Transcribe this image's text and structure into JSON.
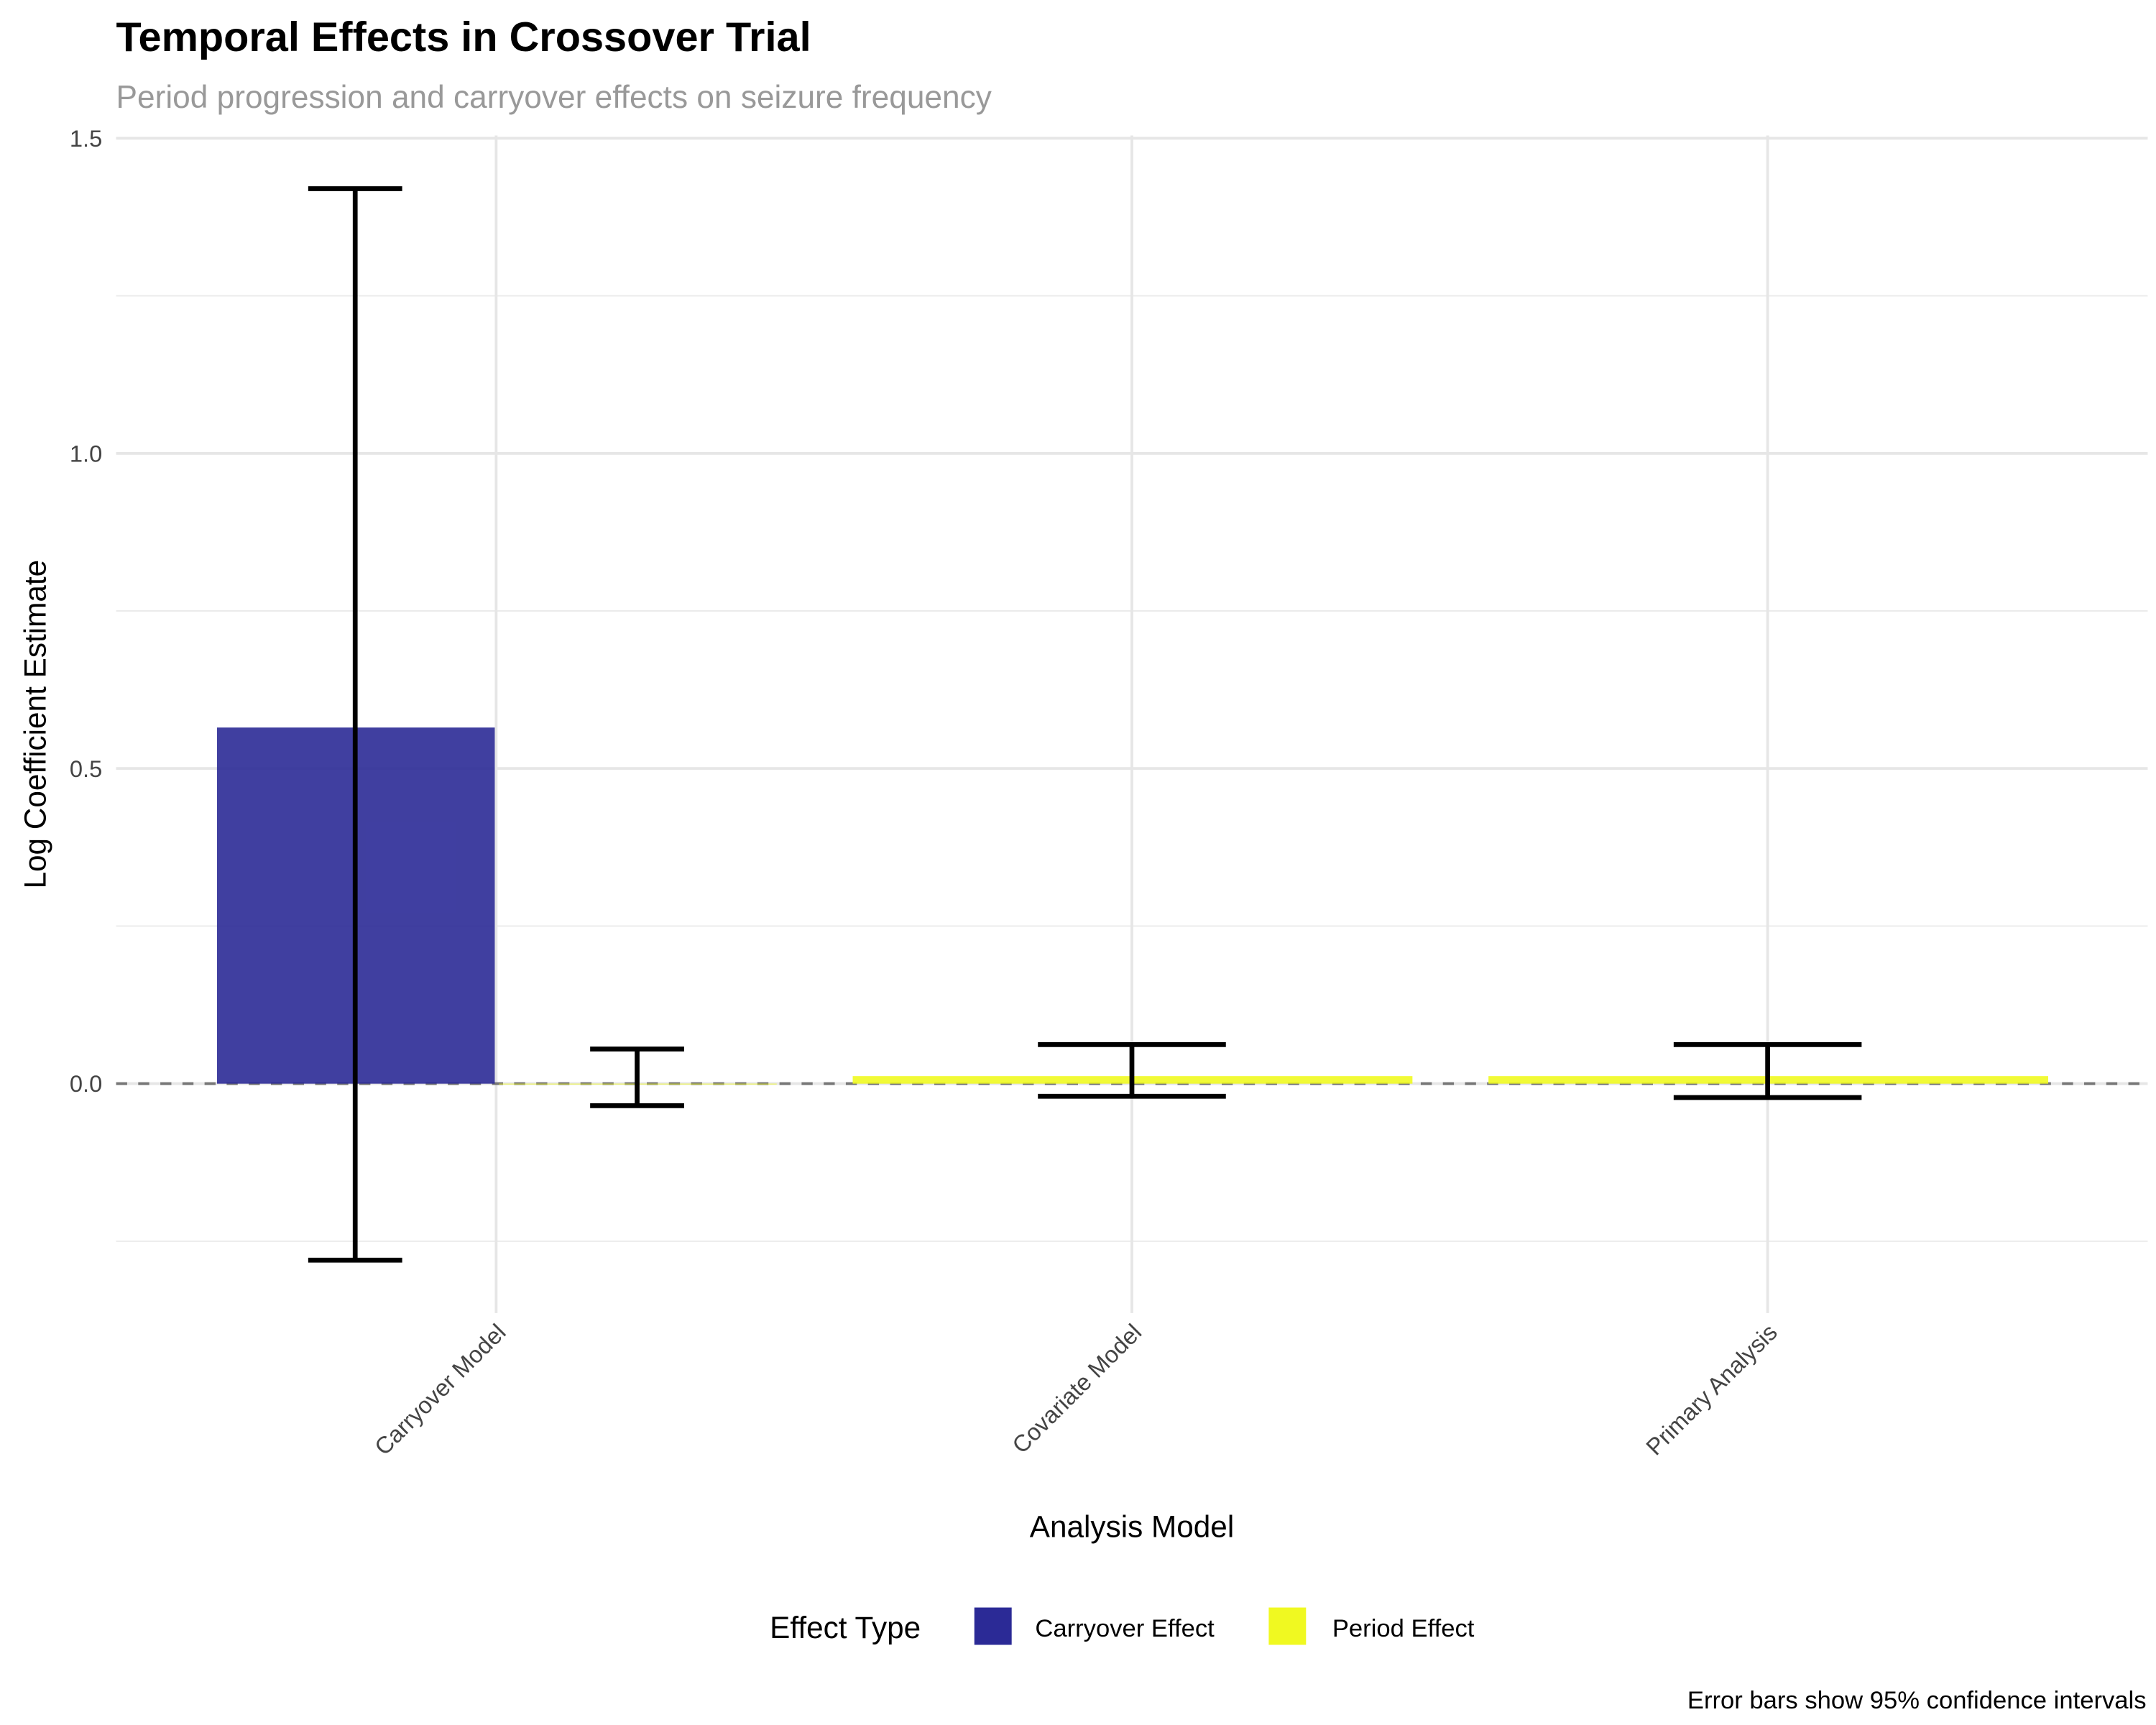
{
  "chart_data": {
    "type": "bar",
    "title": "Temporal Effects in Crossover Trial",
    "subtitle": "Period progression and carryover effects on seizure frequency",
    "xlabel": "Analysis Model",
    "ylabel": "Log Coefficient Estimate",
    "caption": "Error bars show 95% confidence intervals",
    "categories": [
      "Carryover Model",
      "Covariate Model",
      "Primary Analysis"
    ],
    "ylim": [
      -0.36,
      1.5
    ],
    "yticks": [
      "0.0",
      "0.5",
      "1.0",
      "1.5"
    ],
    "ytick_values": [
      0,
      0.5,
      1.0,
      1.5
    ],
    "grid": true,
    "reference_line": 0,
    "legend": {
      "title": "Effect Type",
      "position": "bottom"
    },
    "series": [
      {
        "name": "Carryover Effect",
        "color": "#2B2A96",
        "points": [
          {
            "category": "Carryover Model",
            "value": 0.565,
            "lower": -0.28,
            "upper": 1.42
          }
        ]
      },
      {
        "name": "Period Effect",
        "color": "#F0F921",
        "points": [
          {
            "category": "Carryover Model",
            "value": 0.0,
            "lower": -0.035,
            "upper": 0.055
          },
          {
            "category": "Covariate Model",
            "value": 0.012,
            "lower": -0.02,
            "upper": 0.062
          },
          {
            "category": "Primary Analysis",
            "value": 0.012,
            "lower": -0.022,
            "upper": 0.062
          }
        ]
      }
    ]
  }
}
